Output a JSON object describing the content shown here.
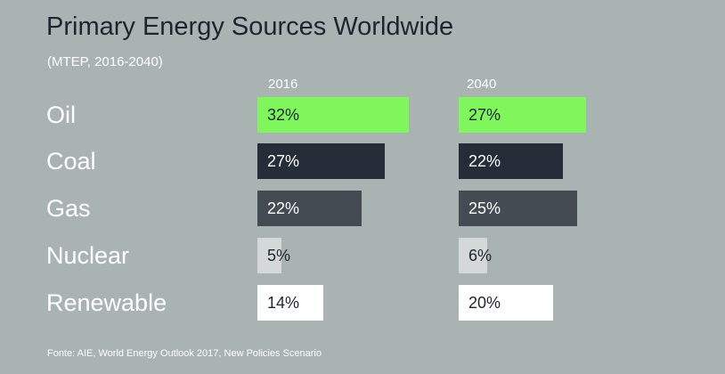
{
  "title": "Primary Energy Sources Worldwide",
  "subtitle": "(MTEP, 2016-2040)",
  "source": "Fonte: AIE, World Energy Outlook 2017, New Policies Scenario",
  "colors": {
    "background": "#a9b3b2",
    "oil": "#7ff65c",
    "coal": "#252d39",
    "gas": "#444b53",
    "nuclear": "#d4d8d9",
    "renewable": "#ffffff",
    "dark_text": "#1e2530",
    "light_text": "#ffffff"
  },
  "chart_data": {
    "type": "bar",
    "orientation": "horizontal",
    "title": "Primary Energy Sources Worldwide",
    "subtitle": "(MTEP, 2016-2040)",
    "categories": [
      "Oil",
      "Coal",
      "Gas",
      "Nuclear",
      "Renewable"
    ],
    "unit": "%",
    "series": [
      {
        "name": "2016",
        "values": [
          32,
          27,
          22,
          5,
          14
        ],
        "labels": [
          "32%",
          "27%",
          "22%",
          "5%",
          "14%"
        ]
      },
      {
        "name": "2040",
        "values": [
          27,
          22,
          25,
          6,
          20
        ],
        "labels": [
          "27%",
          "22%",
          "25%",
          "6%",
          "20%"
        ]
      }
    ],
    "category_colors": [
      "#7ff65c",
      "#252d39",
      "#444b53",
      "#d4d8d9",
      "#ffffff"
    ],
    "category_text_colors": [
      "#1e2530",
      "#ffffff",
      "#ffffff",
      "#1e2530",
      "#1e2530"
    ],
    "xlim": [
      0,
      32
    ],
    "grid": false,
    "axes_visible": false
  }
}
